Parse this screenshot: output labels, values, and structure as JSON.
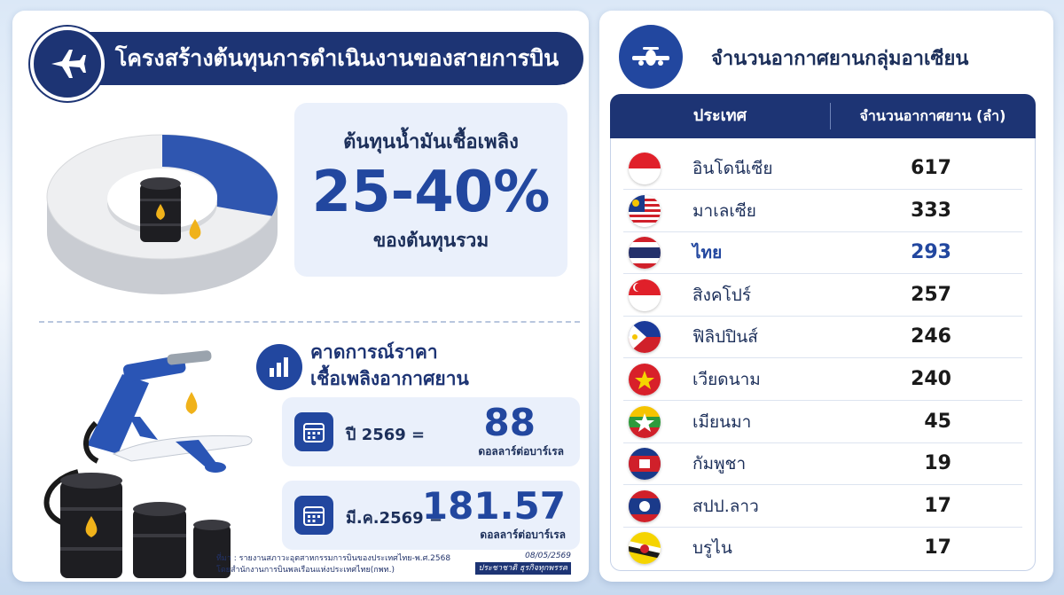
{
  "left": {
    "title": "โครงสร้างต้นทุนการดำเนินงานของสายการบิน",
    "icon": "airplane-icon",
    "fuel": {
      "label": "ต้นทุนน้ำมันเชื้อเพลิง",
      "percent": "25-40%",
      "sub": "ของต้นทุนรวม",
      "share_fraction": 0.3
    },
    "forecast": {
      "title_line1": "คาดการณ์ราคา",
      "title_line2": "เชื้อเพลิงอากาศยาน",
      "items": [
        {
          "label": "ปี 2569 =",
          "value": "88",
          "unit": "ดอลลาร์ต่อบาร์เรล"
        },
        {
          "label": "มี.ค.2569 =",
          "value": "181.57",
          "unit": "ดอลลาร์ต่อบาร์เรล"
        }
      ]
    },
    "source_line1": "ที่มา : รายงานสภาวะอุตสาหกรรมการบินของประเทศไทย-พ.ศ.2568",
    "source_line2": "โดยสำนักงานการบินพลเรือนแห่งประเทศไทย(กพท.)",
    "date": "08/05/2569",
    "publisher": "ประชาชาติ ธุรกิจทุกพรรค"
  },
  "right": {
    "title": "จำนวนอากาศยานกลุ่มอาเซียน",
    "icon": "airplane-front-icon",
    "col_country": "ประเทศ",
    "col_count": "จำนวนอากาศยาน (ลำ)",
    "rows": [
      {
        "name": "อินโดนีเซีย",
        "value": "617",
        "flag": "indonesia"
      },
      {
        "name": "มาเลเซีย",
        "value": "333",
        "flag": "malaysia"
      },
      {
        "name": "ไทย",
        "value": "293",
        "flag": "thailand"
      },
      {
        "name": "สิงคโปร์",
        "value": "257",
        "flag": "singapore"
      },
      {
        "name": "ฟิลิปปินส์",
        "value": "246",
        "flag": "philippines"
      },
      {
        "name": "เวียดนาม",
        "value": "240",
        "flag": "vietnam"
      },
      {
        "name": "เมียนมา",
        "value": "45",
        "flag": "myanmar"
      },
      {
        "name": "กัมพูชา",
        "value": "19",
        "flag": "cambodia"
      },
      {
        "name": "สปป.ลาว",
        "value": "17",
        "flag": "laos"
      },
      {
        "name": "บรูไน",
        "value": "17",
        "flag": "brunei"
      }
    ]
  },
  "colors": {
    "navy": "#1d3474",
    "blue": "#22479f",
    "light": "#eaf0fb",
    "gold": "#f0b21a"
  }
}
